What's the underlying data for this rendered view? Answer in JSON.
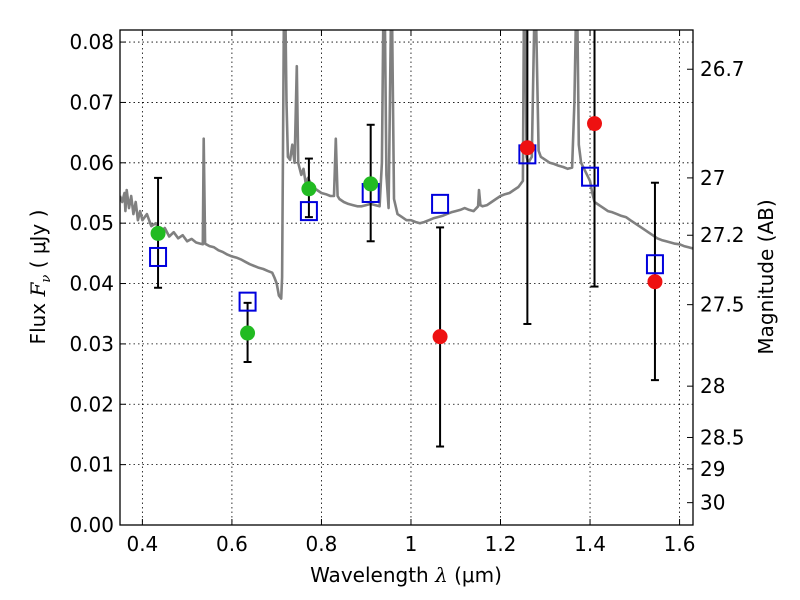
{
  "chart_data": {
    "type": "scatter",
    "xlabel": "Wavelength  λ (μm)",
    "ylabel": "Flux  F_ν  ( μJy )",
    "ylabel_parts": {
      "prefix": "Flux  ",
      "symbol": "F",
      "sub": "ν",
      "suffix": "  ( μJy )"
    },
    "xlabel_parts": {
      "prefix": "Wavelength  ",
      "symbol": "λ",
      "suffix": " (μm)"
    },
    "y2label": "Magnitude (AB)",
    "xlim": [
      0.35,
      1.63
    ],
    "ylim": [
      0.0,
      0.082
    ],
    "grid": true,
    "x_ticks": [
      0.4,
      0.6,
      0.8,
      1.0,
      1.2,
      1.4,
      1.6
    ],
    "x_tick_labels": [
      "0.4",
      "0.6",
      "0.8",
      "1",
      "1.2",
      "1.4",
      "1.6"
    ],
    "y_ticks": [
      0.0,
      0.01,
      0.02,
      0.03,
      0.04,
      0.05,
      0.06,
      0.07,
      0.08
    ],
    "y_tick_labels": [
      "0.00",
      "0.01",
      "0.02",
      "0.03",
      "0.04",
      "0.05",
      "0.06",
      "0.07",
      "0.08"
    ],
    "right_ticks": [
      {
        "flux": 0.0755,
        "label": "26.7"
      },
      {
        "flux": 0.0575,
        "label": "27"
      },
      {
        "flux": 0.048,
        "label": "27.2"
      },
      {
        "flux": 0.0365,
        "label": "27.5"
      },
      {
        "flux": 0.023,
        "label": "28"
      },
      {
        "flux": 0.0145,
        "label": "28.5"
      },
      {
        "flux": 0.0093,
        "label": "29"
      },
      {
        "flux": 0.0037,
        "label": "30"
      }
    ],
    "colors": {
      "model": "#808080",
      "green": "#22bb22",
      "red": "#ee1111",
      "box": "#0000dd",
      "error": "#000000"
    },
    "model_spectrum": [
      [
        0.35,
        0.0545
      ],
      [
        0.355,
        0.0535
      ],
      [
        0.36,
        0.055
      ],
      [
        0.362,
        0.052
      ],
      [
        0.365,
        0.0555
      ],
      [
        0.37,
        0.0525
      ],
      [
        0.375,
        0.0545
      ],
      [
        0.38,
        0.0515
      ],
      [
        0.385,
        0.0535
      ],
      [
        0.39,
        0.0505
      ],
      [
        0.395,
        0.052
      ],
      [
        0.4,
        0.0505
      ],
      [
        0.41,
        0.0515
      ],
      [
        0.42,
        0.0495
      ],
      [
        0.43,
        0.05
      ],
      [
        0.44,
        0.0485
      ],
      [
        0.45,
        0.0492
      ],
      [
        0.46,
        0.0478
      ],
      [
        0.47,
        0.0485
      ],
      [
        0.48,
        0.0475
      ],
      [
        0.49,
        0.048
      ],
      [
        0.5,
        0.047
      ],
      [
        0.51,
        0.0474
      ],
      [
        0.52,
        0.0468
      ],
      [
        0.53,
        0.0466
      ],
      [
        0.535,
        0.0465
      ],
      [
        0.537,
        0.064
      ],
      [
        0.54,
        0.0466
      ],
      [
        0.55,
        0.0462
      ],
      [
        0.56,
        0.046
      ],
      [
        0.57,
        0.0455
      ],
      [
        0.58,
        0.0452
      ],
      [
        0.59,
        0.0448
      ],
      [
        0.6,
        0.0445
      ],
      [
        0.61,
        0.0443
      ],
      [
        0.62,
        0.044
      ],
      [
        0.63,
        0.0436
      ],
      [
        0.64,
        0.0432
      ],
      [
        0.65,
        0.0429
      ],
      [
        0.66,
        0.0426
      ],
      [
        0.67,
        0.0424
      ],
      [
        0.68,
        0.0421
      ],
      [
        0.69,
        0.0418
      ],
      [
        0.695,
        0.041
      ],
      [
        0.7,
        0.04
      ],
      [
        0.705,
        0.038
      ],
      [
        0.71,
        0.0375
      ],
      [
        0.712,
        0.041
      ],
      [
        0.714,
        0.06
      ],
      [
        0.716,
        0.082
      ],
      [
        0.72,
        0.082
      ],
      [
        0.722,
        0.07
      ],
      [
        0.725,
        0.061
      ],
      [
        0.73,
        0.0605
      ],
      [
        0.735,
        0.063
      ],
      [
        0.74,
        0.06
      ],
      [
        0.745,
        0.076
      ],
      [
        0.748,
        0.06
      ],
      [
        0.755,
        0.058
      ],
      [
        0.76,
        0.059
      ],
      [
        0.765,
        0.0565
      ],
      [
        0.77,
        0.0575
      ],
      [
        0.78,
        0.056
      ],
      [
        0.79,
        0.0555
      ],
      [
        0.8,
        0.055
      ],
      [
        0.81,
        0.0548
      ],
      [
        0.82,
        0.0545
      ],
      [
        0.828,
        0.0545
      ],
      [
        0.832,
        0.064
      ],
      [
        0.836,
        0.0545
      ],
      [
        0.84,
        0.054
      ],
      [
        0.85,
        0.0535
      ],
      [
        0.86,
        0.0532
      ],
      [
        0.87,
        0.053
      ],
      [
        0.88,
        0.0528
      ],
      [
        0.89,
        0.0528
      ],
      [
        0.9,
        0.053
      ],
      [
        0.91,
        0.0532
      ],
      [
        0.92,
        0.053
      ],
      [
        0.93,
        0.0528
      ],
      [
        0.935,
        0.06
      ],
      [
        0.938,
        0.082
      ],
      [
        0.942,
        0.082
      ],
      [
        0.945,
        0.058
      ],
      [
        0.95,
        0.0525
      ],
      [
        0.955,
        0.082
      ],
      [
        0.958,
        0.082
      ],
      [
        0.962,
        0.054
      ],
      [
        0.97,
        0.0515
      ],
      [
        0.98,
        0.051
      ],
      [
        0.99,
        0.0505
      ],
      [
        1.0,
        0.0505
      ],
      [
        1.01,
        0.0502
      ],
      [
        1.02,
        0.05
      ],
      [
        1.03,
        0.0502
      ],
      [
        1.04,
        0.0505
      ],
      [
        1.05,
        0.0508
      ],
      [
        1.06,
        0.051
      ],
      [
        1.07,
        0.0512
      ],
      [
        1.08,
        0.0515
      ],
      [
        1.09,
        0.0518
      ],
      [
        1.1,
        0.052
      ],
      [
        1.11,
        0.0522
      ],
      [
        1.12,
        0.0525
      ],
      [
        1.13,
        0.0522
      ],
      [
        1.14,
        0.052
      ],
      [
        1.15,
        0.0528
      ],
      [
        1.152,
        0.0555
      ],
      [
        1.155,
        0.053
      ],
      [
        1.16,
        0.0528
      ],
      [
        1.17,
        0.053
      ],
      [
        1.18,
        0.0535
      ],
      [
        1.19,
        0.054
      ],
      [
        1.2,
        0.0545
      ],
      [
        1.21,
        0.0548
      ],
      [
        1.22,
        0.055
      ],
      [
        1.23,
        0.0555
      ],
      [
        1.24,
        0.056
      ],
      [
        1.25,
        0.057
      ],
      [
        1.252,
        0.082
      ],
      [
        1.256,
        0.082
      ],
      [
        1.258,
        0.061
      ],
      [
        1.262,
        0.06
      ],
      [
        1.27,
        0.061
      ],
      [
        1.275,
        0.082
      ],
      [
        1.28,
        0.082
      ],
      [
        1.285,
        0.062
      ],
      [
        1.29,
        0.061
      ],
      [
        1.3,
        0.0605
      ],
      [
        1.31,
        0.06
      ],
      [
        1.32,
        0.0598
      ],
      [
        1.33,
        0.0595
      ],
      [
        1.34,
        0.0593
      ],
      [
        1.35,
        0.059
      ],
      [
        1.36,
        0.0592
      ],
      [
        1.365,
        0.07
      ],
      [
        1.368,
        0.082
      ],
      [
        1.372,
        0.082
      ],
      [
        1.375,
        0.063
      ],
      [
        1.38,
        0.06
      ],
      [
        1.39,
        0.0585
      ],
      [
        1.4,
        0.057
      ],
      [
        1.405,
        0.055
      ],
      [
        1.41,
        0.0535
      ],
      [
        1.42,
        0.053
      ],
      [
        1.43,
        0.0525
      ],
      [
        1.44,
        0.052
      ],
      [
        1.45,
        0.0518
      ],
      [
        1.46,
        0.0515
      ],
      [
        1.47,
        0.0512
      ],
      [
        1.48,
        0.051
      ],
      [
        1.49,
        0.0505
      ],
      [
        1.5,
        0.05
      ],
      [
        1.51,
        0.0495
      ],
      [
        1.52,
        0.049
      ],
      [
        1.53,
        0.0485
      ],
      [
        1.54,
        0.048
      ],
      [
        1.55,
        0.0475
      ],
      [
        1.56,
        0.0472
      ],
      [
        1.57,
        0.047
      ],
      [
        1.58,
        0.0468
      ],
      [
        1.59,
        0.0466
      ],
      [
        1.6,
        0.0465
      ],
      [
        1.61,
        0.0462
      ],
      [
        1.62,
        0.046
      ],
      [
        1.63,
        0.0458
      ]
    ],
    "points": [
      {
        "x": 0.435,
        "y": 0.0483,
        "color": "green",
        "err_low": 0.0393,
        "err_high": 0.0575
      },
      {
        "x": 0.635,
        "y": 0.0318,
        "color": "green",
        "err_low": 0.027,
        "err_high": 0.0368
      },
      {
        "x": 0.772,
        "y": 0.0557,
        "color": "green",
        "err_low": 0.051,
        "err_high": 0.0607
      },
      {
        "x": 0.91,
        "y": 0.0565,
        "color": "green",
        "err_low": 0.047,
        "err_high": 0.0663
      },
      {
        "x": 1.065,
        "y": 0.0312,
        "color": "red",
        "err_low": 0.013,
        "err_high": 0.0493
      },
      {
        "x": 1.26,
        "y": 0.0625,
        "color": "red",
        "err_low": 0.0333,
        "err_high": 0.082
      },
      {
        "x": 1.41,
        "y": 0.0665,
        "color": "red",
        "err_low": 0.0395,
        "err_high": 0.082
      },
      {
        "x": 1.545,
        "y": 0.0403,
        "color": "red",
        "err_low": 0.024,
        "err_high": 0.0567
      }
    ],
    "model_boxes": [
      {
        "x": 0.435,
        "y": 0.0444
      },
      {
        "x": 0.635,
        "y": 0.037
      },
      {
        "x": 0.772,
        "y": 0.052
      },
      {
        "x": 0.91,
        "y": 0.055
      },
      {
        "x": 1.065,
        "y": 0.0532
      },
      {
        "x": 1.26,
        "y": 0.0614
      },
      {
        "x": 1.4,
        "y": 0.0577
      },
      {
        "x": 1.545,
        "y": 0.0432
      }
    ]
  }
}
